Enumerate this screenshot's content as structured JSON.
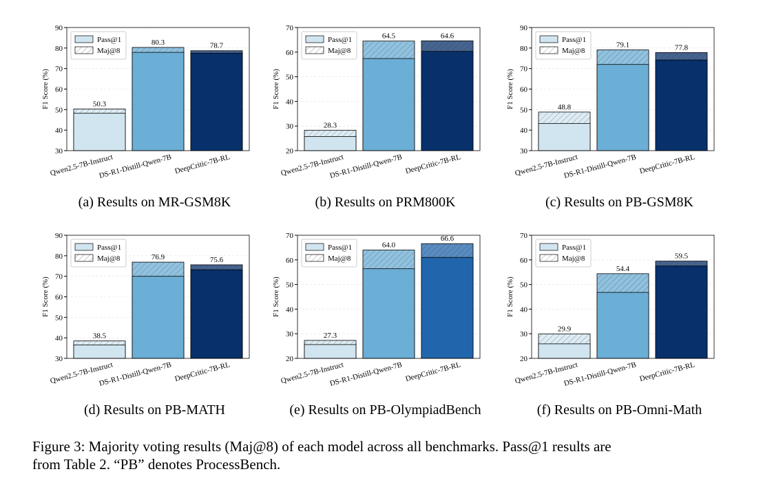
{
  "chart_data": [
    {
      "type": "bar",
      "caption": "(a) Results on MR-GSM8K",
      "ylabel": "F1 Score (%)",
      "categories": [
        "Qwen2.5-7B-Instruct",
        "DS-R1-Distill-Qwen-7B",
        "DeepCritic-7B-RL"
      ],
      "bar_colors": [
        "#d1e5f0",
        "#6baed6",
        "#08306b"
      ],
      "series": [
        {
          "name": "Pass@1",
          "color": "#d1e5f0",
          "values": [
            48.2,
            77.9,
            77.5
          ]
        },
        {
          "name": "Maj@8",
          "color": "#ffffff",
          "values": [
            50.3,
            80.3,
            78.7
          ],
          "value_labels": [
            "50.3",
            "80.3",
            "78.7"
          ]
        }
      ],
      "ylim": [
        30,
        90
      ],
      "yticks": [
        30,
        40,
        50,
        60,
        70,
        80,
        90
      ],
      "grid": true,
      "legend": "upper left"
    },
    {
      "type": "bar",
      "caption": "(b) Results on PRM800K",
      "ylabel": "F1 Score (%)",
      "categories": [
        "Qwen2.5-7B-Instruct",
        "DS-R1-Distill-Qwen-7B",
        "DeepCritic-7B-RL"
      ],
      "bar_colors": [
        "#d1e5f0",
        "#6baed6",
        "#08306b"
      ],
      "series": [
        {
          "name": "Pass@1",
          "color": "#d1e5f0",
          "values": [
            25.7,
            57.4,
            60.3
          ]
        },
        {
          "name": "Maj@8",
          "color": "#ffffff",
          "values": [
            28.3,
            64.5,
            64.6
          ],
          "value_labels": [
            "28.3",
            "64.5",
            "64.6"
          ]
        }
      ],
      "ylim": [
        20,
        70
      ],
      "yticks": [
        20,
        30,
        40,
        50,
        60,
        70
      ],
      "grid": true,
      "legend": "upper left"
    },
    {
      "type": "bar",
      "caption": "(c) Results on PB-GSM8K",
      "ylabel": "F1 Score (%)",
      "categories": [
        "Qwen2.5-7B-Instruct",
        "DS-R1-Distill-Qwen-7B",
        "DeepCritic-7B-RL"
      ],
      "bar_colors": [
        "#d1e5f0",
        "#6baed6",
        "#08306b"
      ],
      "series": [
        {
          "name": "Pass@1",
          "color": "#d1e5f0",
          "values": [
            43.2,
            72.0,
            74.2
          ]
        },
        {
          "name": "Maj@8",
          "color": "#ffffff",
          "values": [
            48.8,
            79.1,
            77.8
          ],
          "value_labels": [
            "48.8",
            "79.1",
            "77.8"
          ]
        }
      ],
      "ylim": [
        30,
        90
      ],
      "yticks": [
        30,
        40,
        50,
        60,
        70,
        80,
        90
      ],
      "grid": true,
      "legend": "upper left"
    },
    {
      "type": "bar",
      "caption": "(d) Results on PB-MATH",
      "ylabel": "F1 Score (%)",
      "categories": [
        "Qwen2.5-7B-Instruct",
        "DS-R1-Distill-Qwen-7B",
        "DeepCritic-7B-RL"
      ],
      "bar_colors": [
        "#d1e5f0",
        "#6baed6",
        "#08306b"
      ],
      "series": [
        {
          "name": "Pass@1",
          "color": "#d1e5f0",
          "values": [
            36.5,
            70.0,
            73.2
          ]
        },
        {
          "name": "Maj@8",
          "color": "#ffffff",
          "values": [
            38.5,
            76.9,
            75.6
          ],
          "value_labels": [
            "38.5",
            "76.9",
            "75.6"
          ]
        }
      ],
      "ylim": [
        30,
        90
      ],
      "yticks": [
        30,
        40,
        50,
        60,
        70,
        80,
        90
      ],
      "grid": true,
      "legend": "upper left"
    },
    {
      "type": "bar",
      "caption": "(e) Results on PB-OlympiadBench",
      "ylabel": "F1 Score (%)",
      "categories": [
        "Qwen2.5-7B-Instruct",
        "DS-R1-Distill-Qwen-7B",
        "DeepCritic-7B-RL"
      ],
      "bar_colors": [
        "#d1e5f0",
        "#6baed6",
        "#2166ac"
      ],
      "series": [
        {
          "name": "Pass@1",
          "color": "#d1e5f0",
          "values": [
            25.6,
            56.4,
            61.0
          ]
        },
        {
          "name": "Maj@8",
          "color": "#ffffff",
          "values": [
            27.3,
            64.0,
            66.6
          ],
          "value_labels": [
            "27.3",
            "64.0",
            "66.6"
          ]
        }
      ],
      "ylim": [
        20,
        70
      ],
      "yticks": [
        20,
        30,
        40,
        50,
        60,
        70
      ],
      "grid": true,
      "legend": "upper left"
    },
    {
      "type": "bar",
      "caption": "(f) Results on PB-Omni-Math",
      "ylabel": "F1 Score (%)",
      "categories": [
        "Qwen2.5-7B-Instruct",
        "DS-R1-Distill-Qwen-7B",
        "DeepCritic-7B-RL"
      ],
      "bar_colors": [
        "#d1e5f0",
        "#6baed6",
        "#08306b"
      ],
      "series": [
        {
          "name": "Pass@1",
          "color": "#d1e5f0",
          "values": [
            25.9,
            46.8,
            57.5
          ]
        },
        {
          "name": "Maj@8",
          "color": "#ffffff",
          "values": [
            29.9,
            54.4,
            59.5
          ],
          "value_labels": [
            "29.9",
            "54.4",
            "59.5"
          ]
        }
      ],
      "ylim": [
        20,
        70
      ],
      "yticks": [
        20,
        30,
        40,
        50,
        60,
        70
      ],
      "grid": true,
      "legend": "upper left"
    }
  ],
  "caption": [
    "Figure 3: Majority voting results (Maj@8) of each model across all benchmarks. Pass@1 results are",
    "from Table 2. “PB” denotes ProcessBench."
  ]
}
